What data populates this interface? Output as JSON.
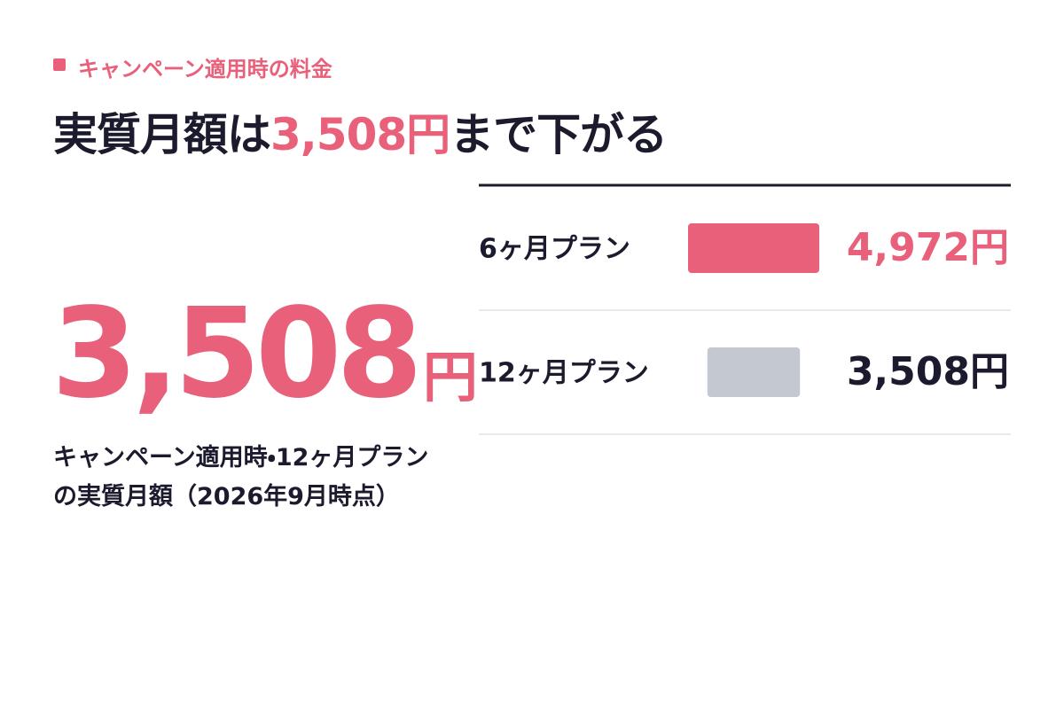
{
  "header": {
    "eyebrow": "キャンペーン適用時の料金",
    "title": [
      "実質月額は",
      "3,508円",
      "まで下がる"
    ]
  },
  "highlight": {
    "value": "3,508",
    "unit": "円",
    "note": "キャンペーン適用時・12ヶ月プランの実質月額（2026年9月時点）"
  },
  "chart_data": {
    "type": "bar",
    "categories": [
      "6ヶ月プラン",
      "12ヶ月プラン"
    ],
    "values": [
      4972,
      3508
    ],
    "value_labels": [
      "4,972円",
      "3,508円"
    ],
    "colors": [
      "#e8607a",
      "#c4c8d1"
    ],
    "label_colors": [
      "#e8607a",
      "#1c1b2e"
    ]
  }
}
